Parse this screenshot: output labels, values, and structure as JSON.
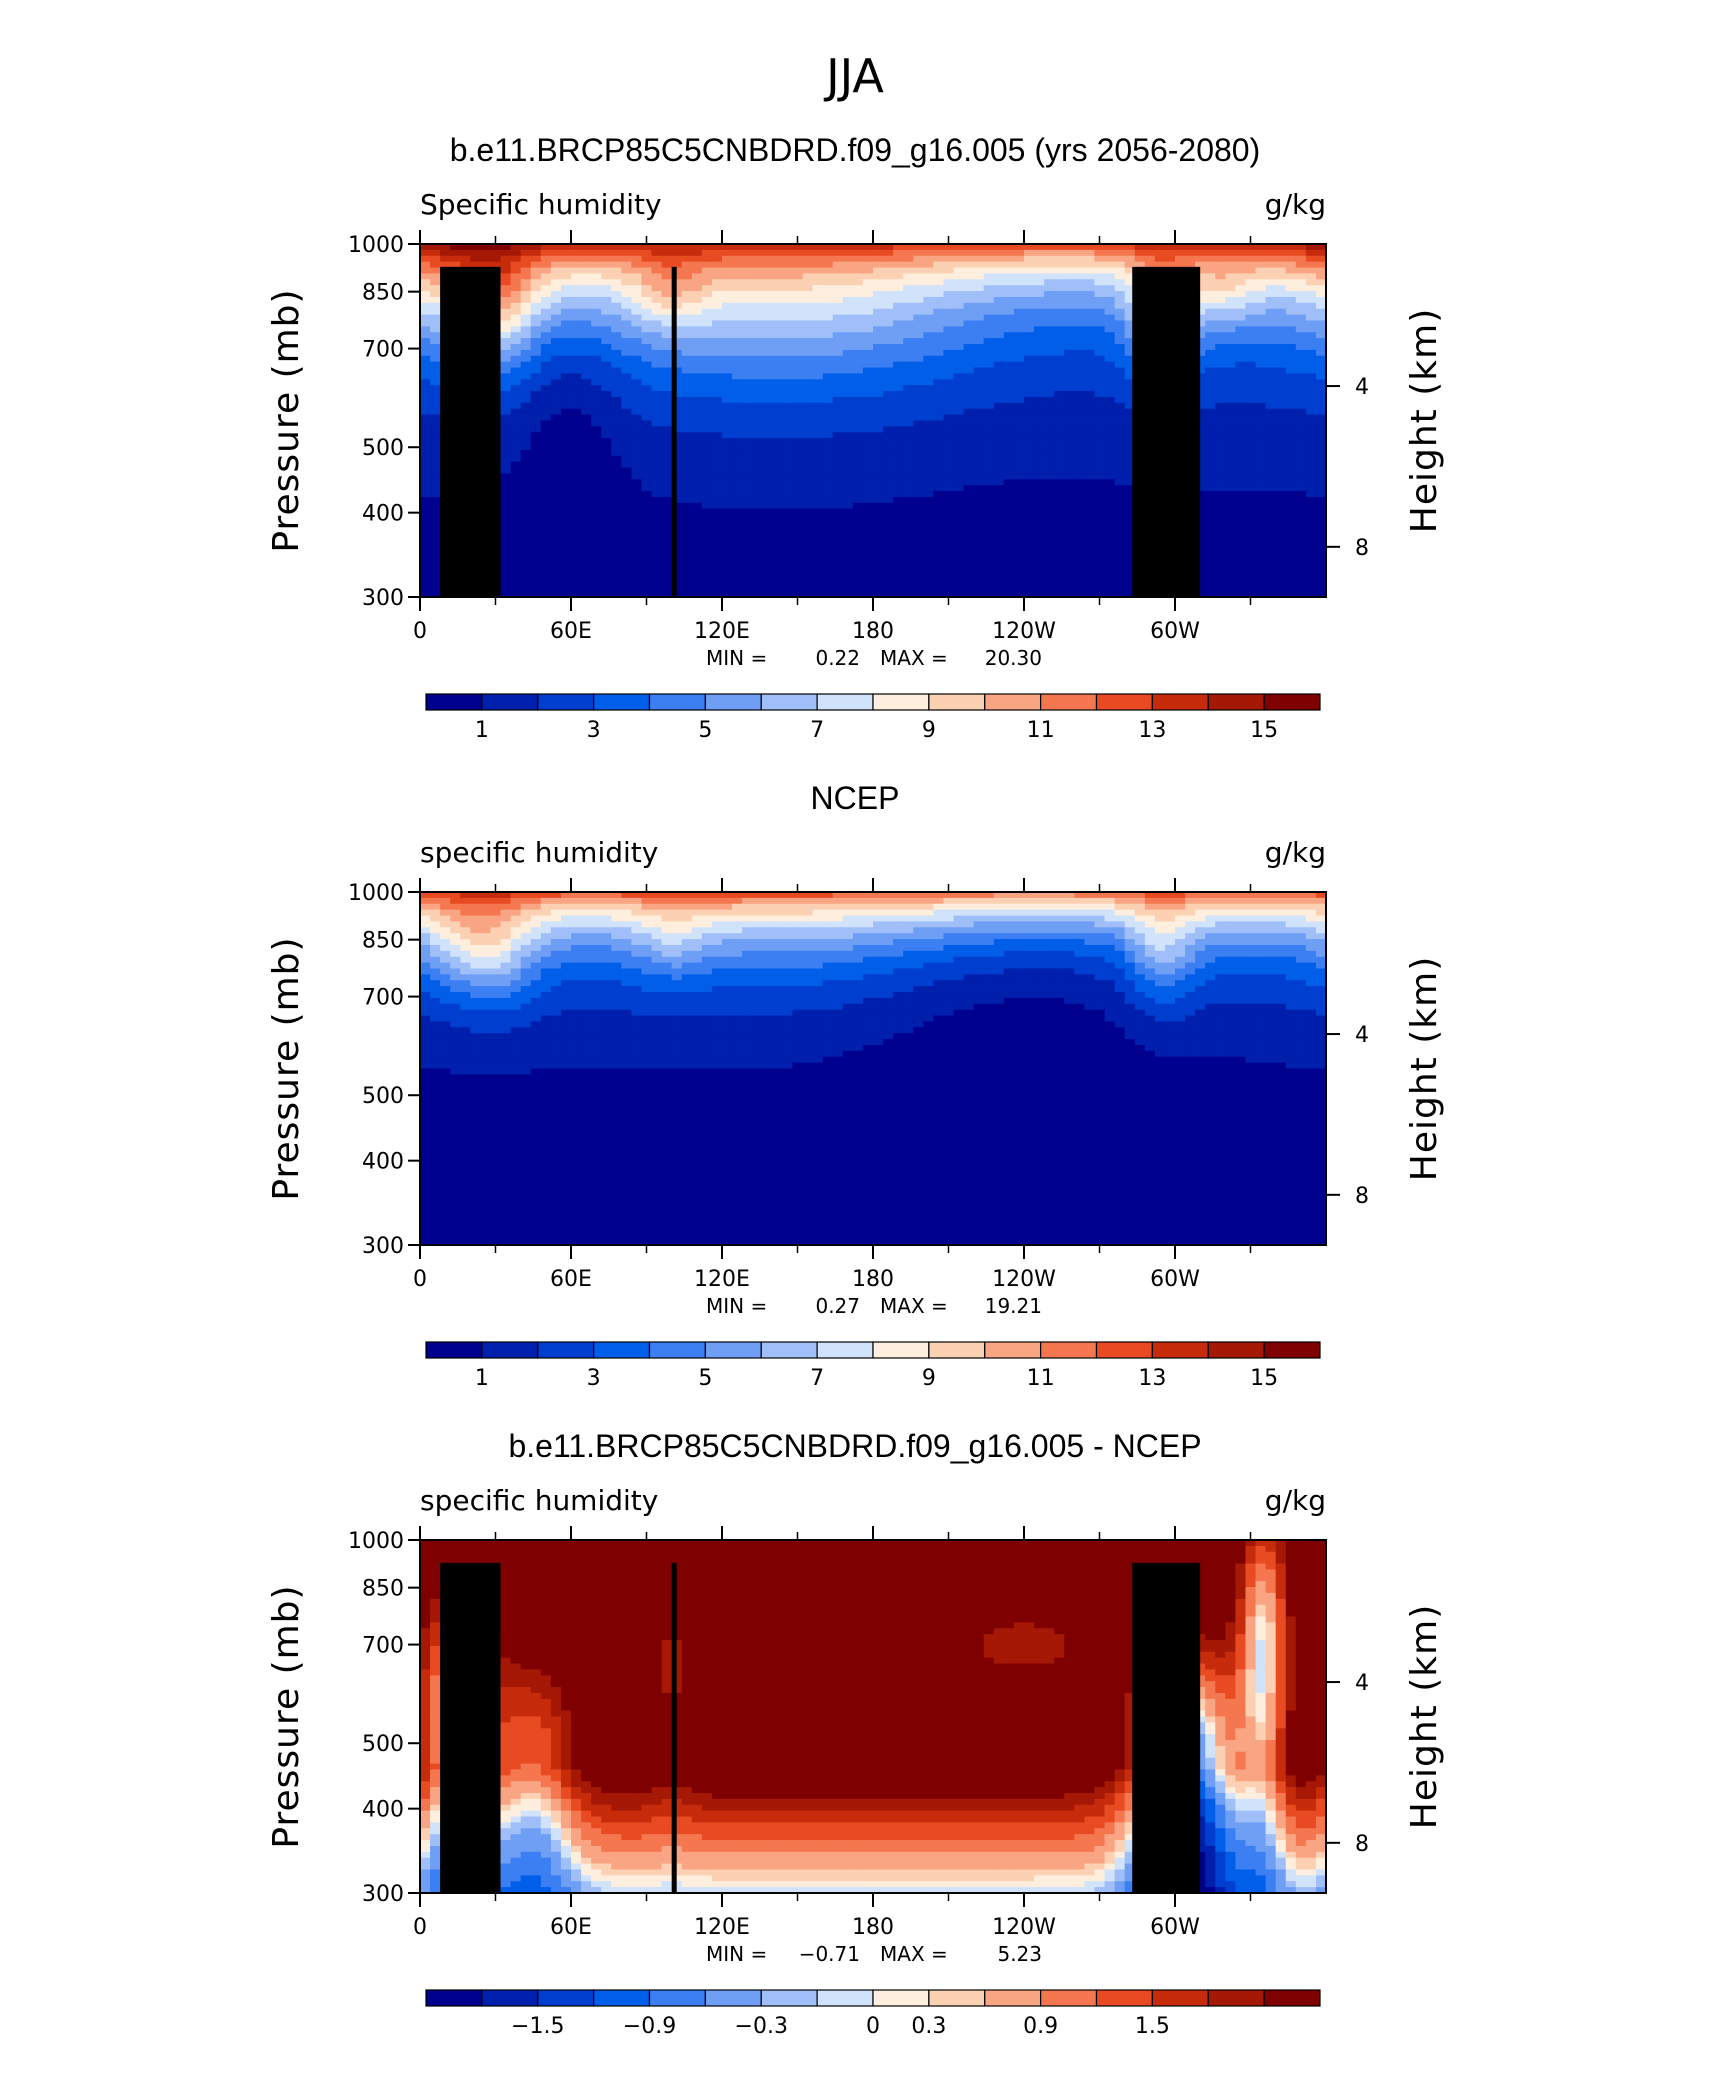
{
  "figure": {
    "super_title": "JJA"
  },
  "chart_data": [
    {
      "type": "heatmap",
      "title": "b.e11.BRCP85C5CNBDRD.f09_g16.005 (yrs 2056-2080)",
      "left_label": "Specific humidity",
      "right_label": "g/kg",
      "ylabel": "Pressure (mb)",
      "ylabel_right": "Height (km)",
      "x_ticks": [
        "0",
        "60E",
        "120E",
        "180",
        "120W",
        "60W"
      ],
      "y_ticks": [
        "300",
        "400",
        "500",
        "700",
        "850",
        "1000"
      ],
      "height_ticks": [
        "8",
        "4"
      ],
      "xlim": [
        0,
        360
      ],
      "ylim": [
        1000,
        300
      ],
      "min_label": "MIN =",
      "min_value": "0.22",
      "max_label": "MAX =",
      "max_value": "20.30",
      "colorbar": {
        "labels": [
          "1",
          "3",
          "5",
          "7",
          "9",
          "11",
          "13",
          "15"
        ],
        "levels": [
          0,
          1,
          2,
          3,
          4,
          5,
          6,
          7,
          8,
          9,
          10,
          11,
          12,
          13,
          14,
          15,
          16
        ]
      },
      "field": {
        "kind": "abs",
        "base": 13.5,
        "decay": 0.0046,
        "terrain": true,
        "bumps": [
          {
            "lon": 10,
            "p": 900,
            "w": 20,
            "h": 160,
            "a": 2.0
          },
          {
            "lon": 30,
            "p": 820,
            "w": 12,
            "h": 120,
            "a": 4.0
          },
          {
            "lon": 150,
            "p": 780,
            "w": 60,
            "h": 150,
            "a": 2.5
          },
          {
            "lon": 100,
            "p": 850,
            "w": 10,
            "h": 80,
            "a": 2.0
          },
          {
            "lon": 295,
            "p": 800,
            "w": 10,
            "h": 120,
            "a": 4.0
          },
          {
            "lon": 320,
            "p": 850,
            "w": 10,
            "h": 80,
            "a": 2.0
          },
          {
            "lon": 240,
            "p": 900,
            "w": 50,
            "h": 200,
            "a": -1.2
          },
          {
            "lon": 60,
            "p": 600,
            "w": 15,
            "h": 150,
            "a": -1.2
          }
        ]
      }
    },
    {
      "type": "heatmap",
      "title": "NCEP",
      "left_label": "specific humidity",
      "right_label": "g/kg",
      "ylabel": "Pressure (mb)",
      "ylabel_right": "Height (km)",
      "x_ticks": [
        "0",
        "60E",
        "120E",
        "180",
        "120W",
        "60W"
      ],
      "y_ticks": [
        "300",
        "400",
        "500",
        "700",
        "850",
        "1000"
      ],
      "height_ticks": [
        "8",
        "4"
      ],
      "xlim": [
        0,
        360
      ],
      "ylim": [
        1000,
        300
      ],
      "min_label": "MIN =",
      "min_value": "0.27",
      "max_label": "MAX =",
      "max_value": "19.21",
      "colorbar": {
        "labels": [
          "1",
          "3",
          "5",
          "7",
          "9",
          "11",
          "13",
          "15"
        ],
        "levels": [
          0,
          1,
          2,
          3,
          4,
          5,
          6,
          7,
          8,
          9,
          10,
          11,
          12,
          13,
          14,
          15,
          16
        ]
      },
      "field": {
        "kind": "abs",
        "base": 12.5,
        "decay": 0.0056,
        "terrain": false,
        "bumps": [
          {
            "lon": 30,
            "p": 830,
            "w": 12,
            "h": 110,
            "a": 3.0
          },
          {
            "lon": 15,
            "p": 850,
            "w": 12,
            "h": 100,
            "a": 2.0
          },
          {
            "lon": 295,
            "p": 820,
            "w": 10,
            "h": 110,
            "a": 3.0
          },
          {
            "lon": 100,
            "p": 850,
            "w": 10,
            "h": 80,
            "a": 1.5
          },
          {
            "lon": 240,
            "p": 800,
            "w": 45,
            "h": 200,
            "a": -1.5
          },
          {
            "lon": 150,
            "p": 850,
            "w": 50,
            "h": 120,
            "a": 0.8
          }
        ]
      }
    },
    {
      "type": "heatmap",
      "title": "b.e11.BRCP85C5CNBDRD.f09_g16.005 - NCEP",
      "left_label": "specific humidity",
      "right_label": "g/kg",
      "ylabel": "Pressure (mb)",
      "ylabel_right": "Height (km)",
      "x_ticks": [
        "0",
        "60E",
        "120E",
        "180",
        "120W",
        "60W"
      ],
      "y_ticks": [
        "300",
        "400",
        "500",
        "700",
        "850",
        "1000"
      ],
      "height_ticks": [
        "8",
        "4"
      ],
      "xlim": [
        0,
        360
      ],
      "ylim": [
        1000,
        300
      ],
      "min_label": "MIN =",
      "min_value": "−0.71",
      "max_label": "MAX =",
      "max_value": "5.23",
      "colorbar": {
        "labels": [
          "−1.5",
          "−0.9",
          "−0.3",
          "0",
          "0.3",
          "0.9",
          "1.5"
        ],
        "label_boxes": [
          2,
          4,
          6,
          8,
          9,
          11,
          13
        ],
        "levels": [
          -2.1,
          -1.8,
          -1.5,
          -1.2,
          -0.9,
          -0.6,
          -0.3,
          -0.15,
          0,
          0.15,
          0.3,
          0.6,
          0.9,
          1.2,
          1.5,
          1.8,
          2.1
        ]
      },
      "field": {
        "kind": "diff",
        "terrain": true,
        "bumps": [
          {
            "lon": 15,
            "p": 550,
            "w": 10,
            "h": 200,
            "a": -2.6
          },
          {
            "lon": 45,
            "p": 450,
            "w": 12,
            "h": 150,
            "a": -1.6
          },
          {
            "lon": 305,
            "p": 450,
            "w": 15,
            "h": 160,
            "a": -3.2
          },
          {
            "lon": 335,
            "p": 700,
            "w": 7,
            "h": 250,
            "a": -2.4
          },
          {
            "lon": 240,
            "p": 700,
            "w": 20,
            "h": 60,
            "a": -1.0
          },
          {
            "lon": 100,
            "p": 650,
            "w": 6,
            "h": 150,
            "a": -0.8
          }
        ]
      }
    }
  ]
}
